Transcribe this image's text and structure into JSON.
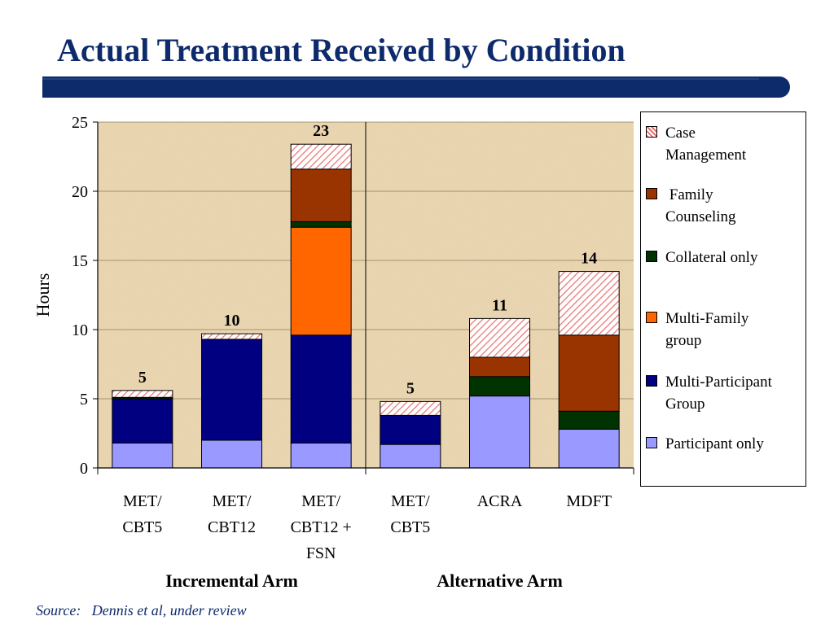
{
  "page": {
    "title": "Actual Treatment Received by Condition",
    "source": "Source:   Dennis et al, under review"
  },
  "colors": {
    "title": "#0d2a6b",
    "title_bar": "#0d2a6b",
    "plot_bg": "#ecd9b4",
    "case_management": "#f2a6a6",
    "family_counseling": "#993300",
    "collateral_only": "#003300",
    "multi_family_group": "#ff6600",
    "multi_participant_group": "#000080",
    "participant_only": "#9999ff"
  },
  "chart_data": {
    "type": "bar",
    "stacked": true,
    "ylabel": "Hours",
    "ylim": [
      0,
      25
    ],
    "yticks": [
      0,
      5,
      10,
      15,
      20,
      25
    ],
    "categories": [
      "MET/\nCBT5",
      "MET/\nCBT12",
      "MET/\nCBT12 +\nFSN",
      "MET/\nCBT5",
      "ACRA",
      "MDFT"
    ],
    "groups": [
      {
        "label": "Incremental Arm",
        "categories": [
          0,
          1,
          2
        ]
      },
      {
        "label": "Alternative Arm",
        "categories": [
          3,
          4,
          5
        ]
      }
    ],
    "totals": [
      "5",
      "10",
      "23",
      "5",
      "11",
      "14"
    ],
    "series": [
      {
        "name": "Participant only",
        "color_key": "participant_only",
        "values": [
          1.8,
          2.0,
          1.8,
          1.7,
          5.2,
          2.8
        ]
      },
      {
        "name": "Multi-Participant Group",
        "color_key": "multi_participant_group",
        "values": [
          3.2,
          7.3,
          7.8,
          2.1,
          0,
          0
        ]
      },
      {
        "name": "Multi-Family group",
        "color_key": "multi_family_group",
        "values": [
          0,
          0,
          7.8,
          0,
          0,
          0
        ]
      },
      {
        "name": "Collateral only",
        "color_key": "collateral_only",
        "values": [
          0.1,
          0,
          0.4,
          0,
          1.4,
          1.3
        ]
      },
      {
        "name": "Family Counseling",
        "color_key": "family_counseling",
        "values": [
          0,
          0,
          3.8,
          0,
          1.4,
          5.5
        ]
      },
      {
        "name": "Case Management",
        "color_key": "case_management",
        "values": [
          0.5,
          0.4,
          1.8,
          1.0,
          2.8,
          4.6
        ]
      }
    ],
    "legend": {
      "placement": "right",
      "items": [
        {
          "label": "Case\nManagement",
          "color_key": "case_management",
          "hatched": true
        },
        {
          "label": " Family\nCounseling",
          "color_key": "family_counseling",
          "hatched": false
        },
        {
          "label": "Collateral only",
          "color_key": "collateral_only",
          "hatched": false
        },
        {
          "label": "Multi-Family\ngroup",
          "color_key": "multi_family_group",
          "hatched": false
        },
        {
          "label": "Multi-Participant\nGroup",
          "color_key": "multi_participant_group",
          "hatched": false
        },
        {
          "label": "Participant only",
          "color_key": "participant_only",
          "hatched": false
        }
      ]
    }
  }
}
